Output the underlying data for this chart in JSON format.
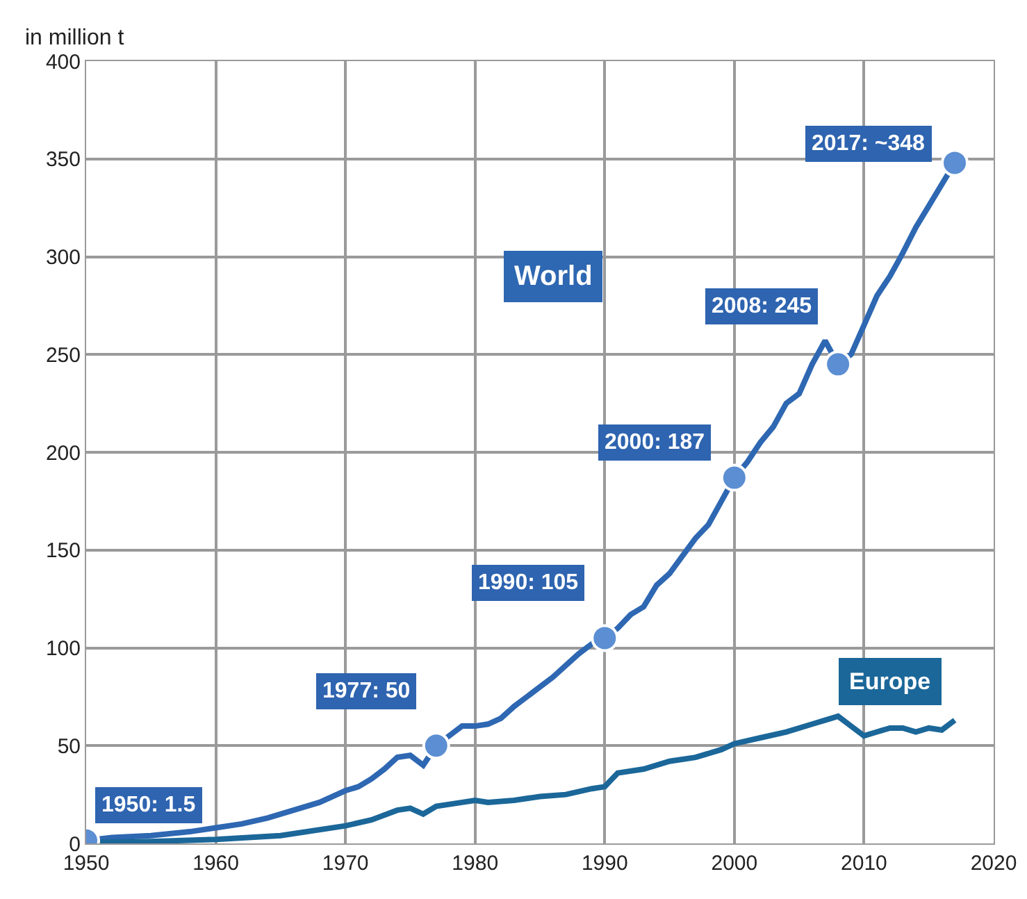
{
  "chart_data": {
    "type": "line",
    "ylabel": "in million t",
    "xlim": [
      1950,
      2020
    ],
    "xticks": [
      1950,
      1960,
      1970,
      1980,
      1990,
      2000,
      2010,
      2020
    ],
    "ylim": [
      0,
      400
    ],
    "yticks": [
      0,
      50,
      100,
      150,
      200,
      250,
      300,
      350,
      400
    ],
    "grid": true,
    "legend": false,
    "marker": "none",
    "line_style": "solid",
    "series": [
      {
        "name": "World",
        "color": "#2e67b2",
        "x": [
          1950,
          1952,
          1955,
          1958,
          1960,
          1962,
          1964,
          1966,
          1968,
          1970,
          1971,
          1972,
          1973,
          1974,
          1975,
          1976,
          1977,
          1978,
          1979,
          1980,
          1981,
          1982,
          1983,
          1984,
          1985,
          1986,
          1987,
          1988,
          1989,
          1990,
          1991,
          1992,
          1993,
          1994,
          1995,
          1996,
          1997,
          1998,
          1999,
          2000,
          2001,
          2002,
          2003,
          2004,
          2005,
          2006,
          2007,
          2008,
          2009,
          2010,
          2011,
          2012,
          2013,
          2014,
          2015,
          2016,
          2017
        ],
        "values": [
          1.5,
          3,
          4,
          6,
          8,
          10,
          13,
          17,
          21,
          27,
          29,
          33,
          38,
          44,
          45,
          40,
          50,
          55,
          60,
          60,
          61,
          64,
          70,
          75,
          80,
          85,
          91,
          97,
          102,
          105,
          110,
          117,
          121,
          132,
          138,
          147,
          156,
          163,
          175,
          187,
          195,
          205,
          213,
          225,
          230,
          245,
          257,
          245,
          250,
          265,
          280,
          290,
          302,
          315,
          326,
          337,
          348
        ]
      },
      {
        "name": "Europe",
        "color": "#1b6799",
        "x": [
          1950,
          1955,
          1960,
          1965,
          1970,
          1972,
          1974,
          1975,
          1976,
          1977,
          1979,
          1980,
          1981,
          1983,
          1985,
          1987,
          1989,
          1990,
          1991,
          1993,
          1995,
          1997,
          1999,
          2000,
          2002,
          2004,
          2006,
          2007,
          2008,
          2009,
          2010,
          2011,
          2012,
          2013,
          2014,
          2015,
          2016,
          2017
        ],
        "values": [
          0.5,
          1,
          2,
          4,
          9,
          12,
          17,
          18,
          15,
          19,
          21,
          22,
          21,
          22,
          24,
          25,
          28,
          29,
          36,
          38,
          42,
          44,
          48,
          51,
          54,
          57,
          61,
          63,
          65,
          60,
          55,
          57,
          59,
          59,
          57,
          59,
          58,
          63
        ]
      }
    ],
    "annotations": [
      {
        "text": "1950: 1.5",
        "x": 1950,
        "y": 1.5
      },
      {
        "text": "1977: 50",
        "x": 1977,
        "y": 50
      },
      {
        "text": "1990: 105",
        "x": 1990,
        "y": 105
      },
      {
        "text": "2000: 187",
        "x": 2000,
        "y": 187
      },
      {
        "text": "2008: 245",
        "x": 2008,
        "y": 245
      },
      {
        "text": "2017: ~348",
        "x": 2017,
        "y": 348
      }
    ]
  }
}
